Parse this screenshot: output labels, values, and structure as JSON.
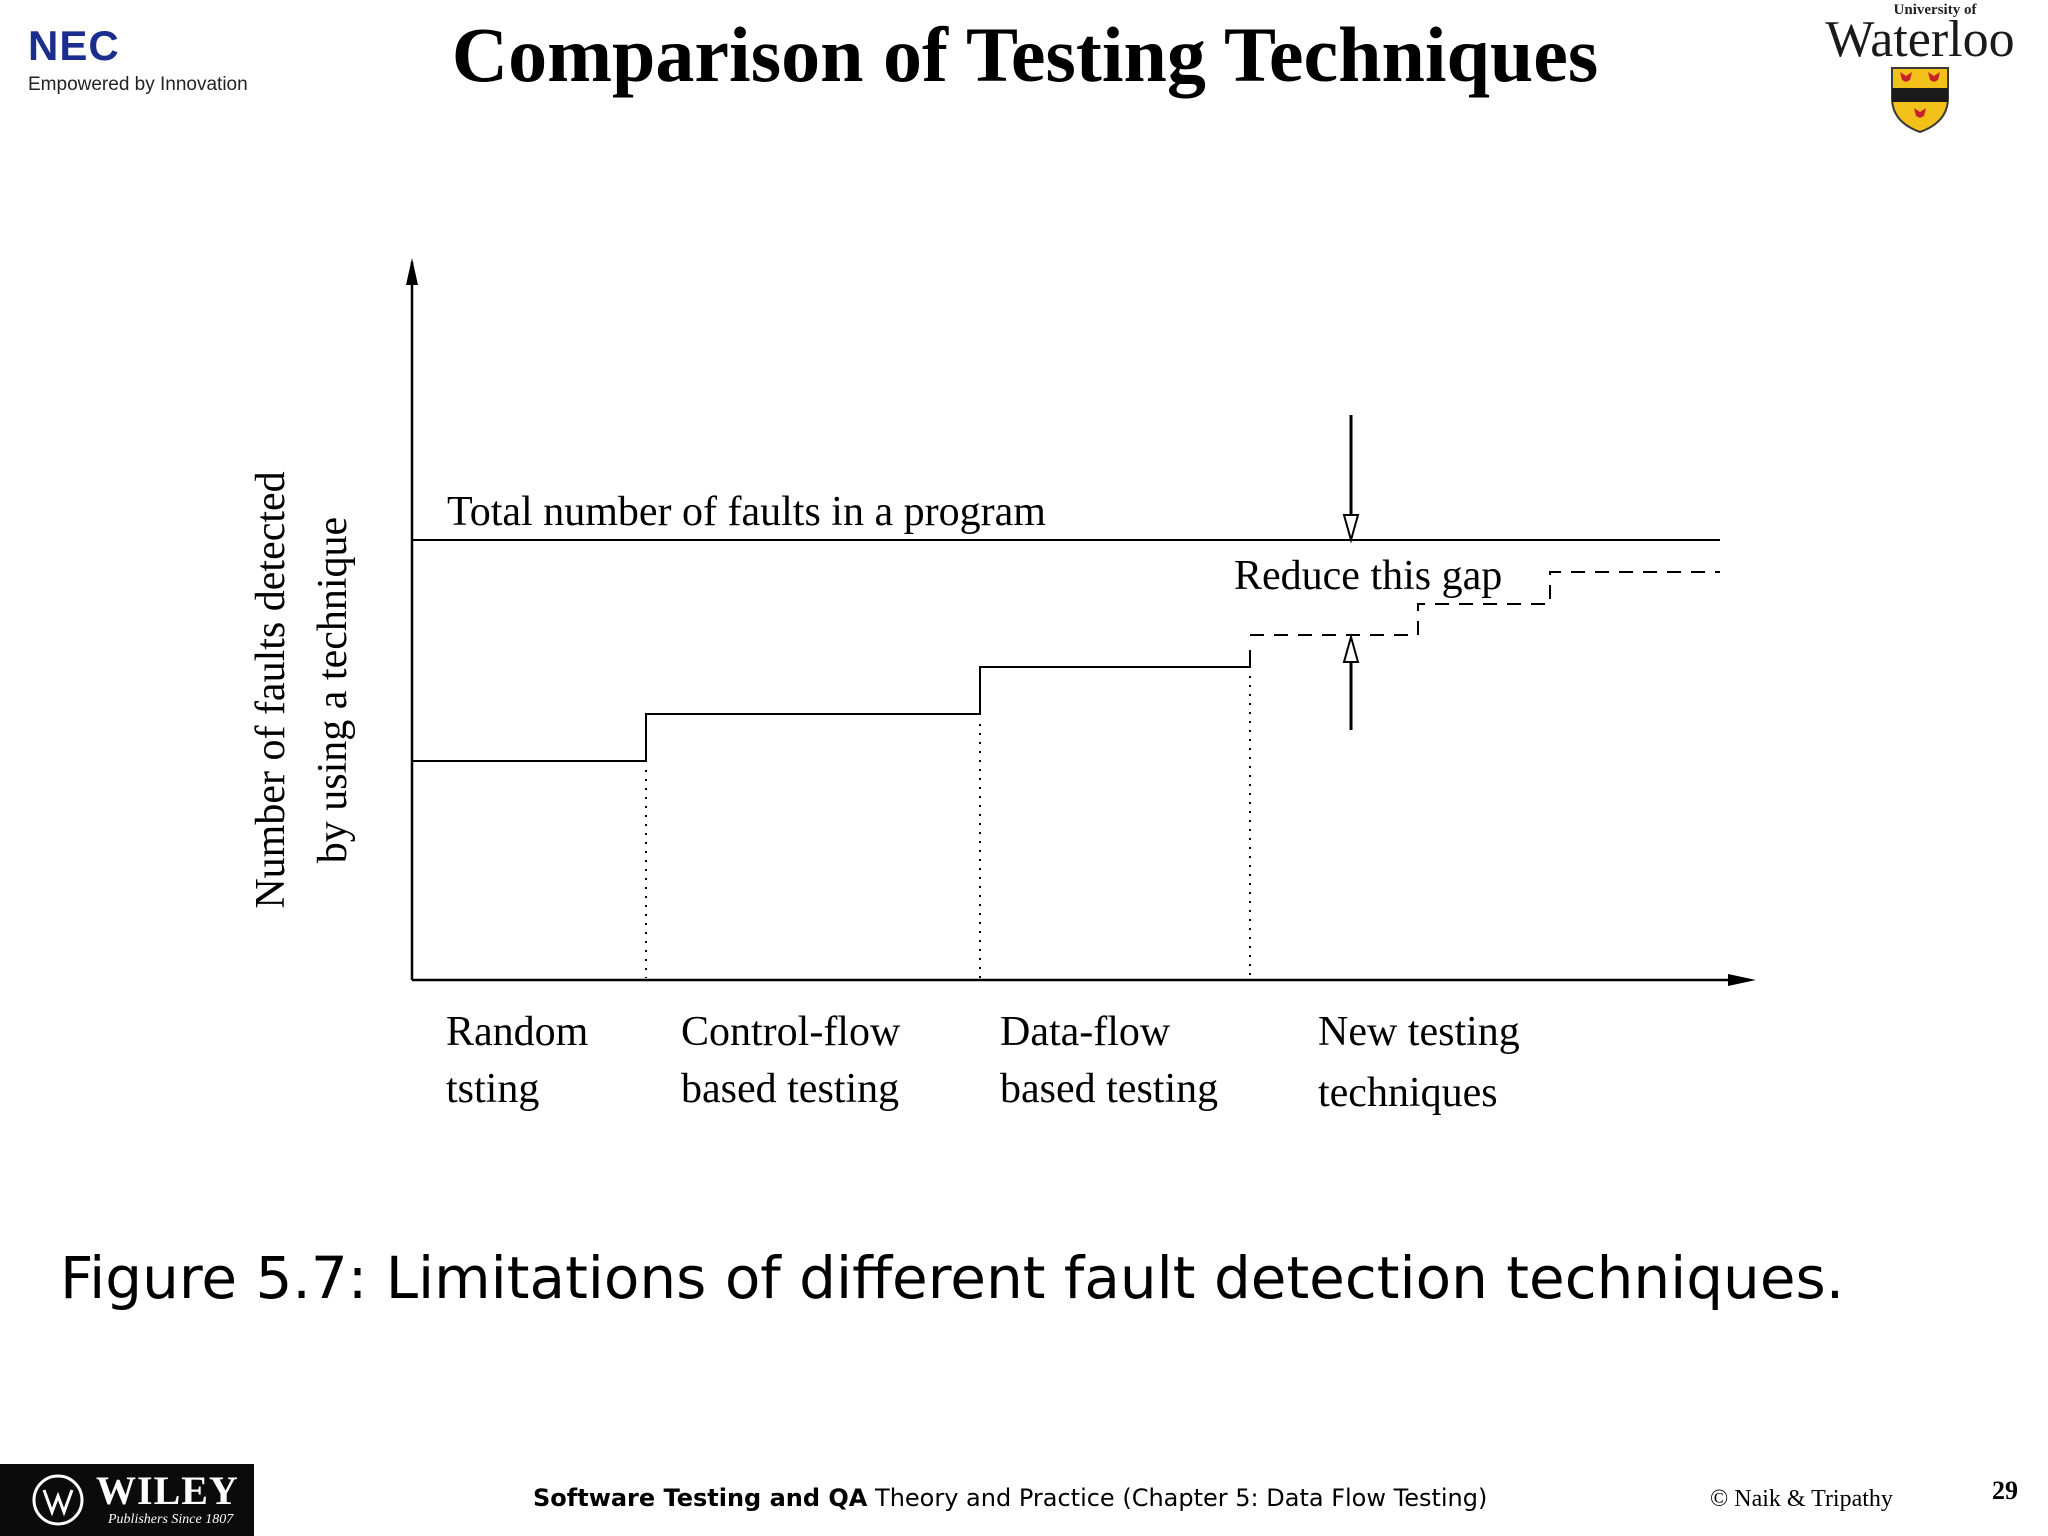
{
  "header": {
    "title": "Comparison of Testing Techniques",
    "nec_logo": {
      "word": "NEC",
      "tagline": "Empowered by Innovation"
    },
    "uw_logo": {
      "small": "University of",
      "word": "Waterloo"
    }
  },
  "diagram": {
    "total_label": "Total number of faults in a program",
    "gap_label": "Reduce this gap",
    "ylabel_line1": "Number of faults detected",
    "ylabel_line2": "by using a technique",
    "categories": [
      {
        "line1": "Random",
        "line2": "tsting"
      },
      {
        "line1": "Control-flow",
        "line2": "based testing"
      },
      {
        "line1": "Data-flow",
        "line2": "based testing"
      },
      {
        "line1": "New testing",
        "line2": "techniques"
      }
    ]
  },
  "caption": "Figure 5.7: Limitations of different fault detection techniques.",
  "footer": {
    "bold": "Software Testing and QA",
    "italic_like": "Theory and Practice",
    "rest": "(Chapter 5: Data Flow Testing)",
    "copyright": "© Naik & Tripathy",
    "page_number": "29",
    "wiley": {
      "word": "WILEY",
      "sub": "Publishers Since 1807"
    }
  },
  "colors": {
    "nec_blue": "#1b2d8f",
    "uw_gold": "#f2c21b",
    "uw_red": "#c8202a"
  }
}
